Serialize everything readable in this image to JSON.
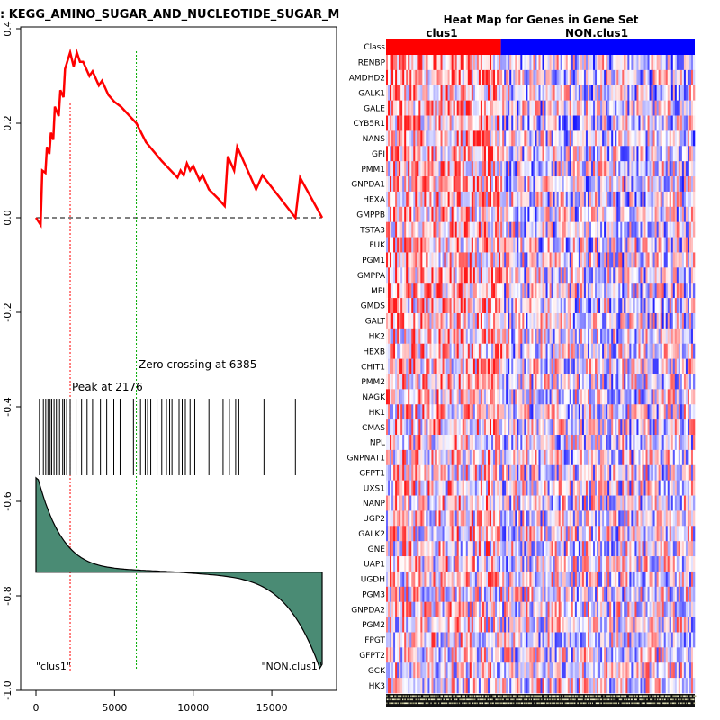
{
  "gsea_plot": {
    "title": ": KEGG_AMINO_SUGAR_AND_NUCLEOTIDE_SUGAR_M",
    "peak_label": "Peak at 2176",
    "zero_label": "Zero crossing at 6385",
    "left_class_label": "\"clus1\"",
    "right_class_label": "\"NON.clus1\"",
    "y_ticks": [
      "0.4",
      "0.2",
      "0.0",
      "-0.2",
      "-0.4",
      "-0.6",
      "-0.8",
      "-1.0"
    ],
    "x_ticks": [
      "0",
      "5000",
      "10000",
      "15000"
    ]
  },
  "heatmap": {
    "title": "Heat Map for Genes in Gene Set",
    "class_row_label": "Class",
    "class_labels": [
      "clus1",
      "NON.clus1"
    ],
    "genes": [
      "RENBP",
      "AMDHD2",
      "GALK1",
      "GALE",
      "CYB5R1",
      "NANS",
      "GPI",
      "PMM1",
      "GNPDA1",
      "HEXA",
      "GMPPB",
      "TSTA3",
      "FUK",
      "PGM1",
      "GMPPA",
      "MPI",
      "GMDS",
      "GALT",
      "HK2",
      "HEXB",
      "CHIT1",
      "PMM2",
      "NAGK",
      "HK1",
      "CMAS",
      "NPL",
      "GNPNAT1",
      "GFPT1",
      "UXS1",
      "NANP",
      "UGP2",
      "GALK2",
      "GNE",
      "UAP1",
      "UGDH",
      "PGM3",
      "GNPDA2",
      "PGM2",
      "FPGT",
      "GFPT2",
      "GCK",
      "HK3"
    ]
  },
  "colors": {
    "es_curve": "#ff0000",
    "peak_line": "#ff0000",
    "zero_line": "#00aa00",
    "rank_fill": "#4a8b74",
    "class1": "#ff0000",
    "class2": "#0000ff"
  },
  "chart_data": [
    {
      "type": "line",
      "title": ": KEGG_AMINO_SUGAR_AND_NUCLEOTIDE_SUGAR_M",
      "xlabel": "",
      "ylabel": "",
      "xlim": [
        0,
        18200
      ],
      "ylim": [
        -1.0,
        0.4
      ],
      "series": [
        {
          "x": [
            0,
            300,
            400,
            600,
            700,
            850,
            950,
            1100,
            1200,
            1450,
            1550,
            1750,
            1850,
            2176,
            2400,
            2600,
            2800,
            3000,
            3400,
            3600,
            4000,
            4200,
            4600,
            5000,
            5400,
            6385,
            7000,
            8000,
            9000,
            9200,
            9400,
            9600,
            9800,
            10000,
            10400,
            10600,
            11000,
            11600,
            12000,
            12200,
            12600,
            12800,
            13200,
            14000,
            14400,
            16500,
            16800,
            18200
          ],
          "values": [
            0.0,
            -0.015,
            0.1,
            0.095,
            0.15,
            0.135,
            0.18,
            0.165,
            0.235,
            0.215,
            0.27,
            0.255,
            0.315,
            0.35,
            0.32,
            0.35,
            0.33,
            0.33,
            0.3,
            0.31,
            0.28,
            0.29,
            0.26,
            0.245,
            0.235,
            0.2,
            0.16,
            0.12,
            0.085,
            0.1,
            0.09,
            0.115,
            0.1,
            0.11,
            0.08,
            0.09,
            0.06,
            0.04,
            0.025,
            0.13,
            0.1,
            0.15,
            0.12,
            0.06,
            0.09,
            0.0,
            0.085,
            0.0
          ]
        }
      ],
      "peak_x": 2176,
      "zero_crossing_x": 6385,
      "hit_positions": [
        220,
        470,
        620,
        760,
        900,
        1000,
        1150,
        1300,
        1400,
        1500,
        1700,
        1800,
        1950,
        2176,
        2550,
        2900,
        3250,
        3600,
        4100,
        4500,
        4950,
        5350,
        6200,
        6650,
        6950,
        7100,
        7300,
        7700,
        8000,
        8300,
        8500,
        8650,
        9100,
        9300,
        9500,
        9800,
        10100,
        11000,
        11900,
        12300,
        12700,
        12900,
        14500,
        16500
      ],
      "ranked_metric_ylim": [
        -0.55,
        -0.945
      ],
      "ranked_metric_baseline": -0.75
    },
    {
      "type": "heatmap",
      "title": "Heat Map for Genes in Gene Set",
      "categories": [
        "RENBP",
        "AMDHD2",
        "GALK1",
        "GALE",
        "CYB5R1",
        "NANS",
        "GPI",
        "PMM1",
        "GNPDA1",
        "HEXA",
        "GMPPB",
        "TSTA3",
        "FUK",
        "PGM1",
        "GMPPA",
        "MPI",
        "GMDS",
        "GALT",
        "HK2",
        "HEXB",
        "CHIT1",
        "PMM2",
        "NAGK",
        "HK1",
        "CMAS",
        "NPL",
        "GNPNAT1",
        "GFPT1",
        "UXS1",
        "NANP",
        "UGP2",
        "GALK2",
        "GNE",
        "UAP1",
        "UGDH",
        "PGM3",
        "GNPDA2",
        "PGM2",
        "FPGT",
        "GFPT2",
        "GCK",
        "HK3"
      ],
      "class_split_fraction": 0.372,
      "legend": false
    }
  ]
}
